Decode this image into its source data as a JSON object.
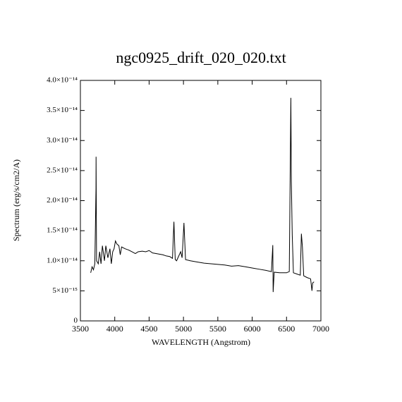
{
  "chart_data": {
    "type": "line",
    "title": "ngc0925_drift_020_020.txt",
    "x_label": "WAVELENGTH (Angstrom)",
    "y_label": "Spectrum (erg/s/cm2/A)",
    "xlim": [
      3500,
      7000
    ],
    "ylim": [
      0,
      4e-14
    ],
    "xticks": [
      3500,
      4000,
      4500,
      5000,
      5500,
      6000,
      6500,
      7000
    ],
    "yticks": [
      0,
      {
        "value": 5e-15,
        "label": "5×10⁻¹⁵"
      },
      {
        "value": 1e-14,
        "label": "1.0×10⁻¹⁴"
      },
      {
        "value": 1.5e-14,
        "label": "1.5×10⁻¹⁴"
      },
      {
        "value": 2e-14,
        "label": "2.0×10⁻¹⁴"
      },
      {
        "value": 2.5e-14,
        "label": "2.5×10⁻¹⁴"
      },
      {
        "value": 3e-14,
        "label": "3.0×10⁻¹⁴"
      },
      {
        "value": 3.5e-14,
        "label": "3.5×10⁻¹⁴"
      },
      {
        "value": 4e-14,
        "label": "4.0×10⁻¹⁴"
      }
    ],
    "series": [
      {
        "color": "#000000",
        "x": [
          3650,
          3670,
          3690,
          3710,
          3727,
          3728,
          3735,
          3760,
          3780,
          3800,
          3820,
          3850,
          3870,
          3900,
          3930,
          3950,
          3970,
          3990,
          4010,
          4030,
          4060,
          4080,
          4100,
          4150,
          4200,
          4250,
          4300,
          4340,
          4400,
          4450,
          4500,
          4550,
          4600,
          4650,
          4700,
          4750,
          4800,
          4840,
          4861,
          4880,
          4900,
          4959,
          4980,
          5007,
          5030,
          5100,
          5200,
          5300,
          5400,
          5500,
          5600,
          5700,
          5800,
          5900,
          6000,
          6100,
          6200,
          6280,
          6300,
          6305,
          6320,
          6400,
          6500,
          6540,
          6563,
          6570,
          6583,
          6600,
          6650,
          6700,
          6716,
          6731,
          6750,
          6800,
          6850,
          6870,
          6880,
          6900
        ],
        "values": [
          8e-15,
          9e-15,
          8.5e-15,
          9.5e-15,
          2.2e-14,
          2.73e-14,
          1e-14,
          9.5e-15,
          1.15e-14,
          9.5e-15,
          1.25e-14,
          1e-14,
          1.25e-14,
          1.05e-14,
          1.2e-14,
          9.5e-15,
          1.15e-14,
          1.2e-14,
          1.33e-14,
          1.28e-14,
          1.25e-14,
          1.1e-14,
          1.23e-14,
          1.2e-14,
          1.18e-14,
          1.15e-14,
          1.12e-14,
          1.15e-14,
          1.16e-14,
          1.15e-14,
          1.17e-14,
          1.13e-14,
          1.12e-14,
          1.11e-14,
          1.1e-14,
          1.08e-14,
          1.07e-14,
          1.04e-14,
          1.65e-14,
          1.02e-14,
          1e-14,
          1.15e-14,
          1.05e-14,
          1.63e-14,
          1.02e-14,
          1e-14,
          9.8e-15,
          9.6e-15,
          9.5e-15,
          9.4e-15,
          9.3e-15,
          9.1e-15,
          9.2e-15,
          9e-15,
          8.8e-15,
          8.6e-15,
          8.4e-15,
          8.2e-15,
          1.26e-14,
          4.8e-15,
          8.1e-15,
          8e-15,
          8e-15,
          8.2e-15,
          3.71e-14,
          2.32e-14,
          1.43e-14,
          8e-15,
          7.8e-15,
          7.6e-15,
          1.45e-14,
          1.23e-14,
          7.5e-15,
          7.2e-15,
          7e-15,
          5e-15,
          6.3e-15,
          6.5e-15
        ]
      }
    ]
  }
}
